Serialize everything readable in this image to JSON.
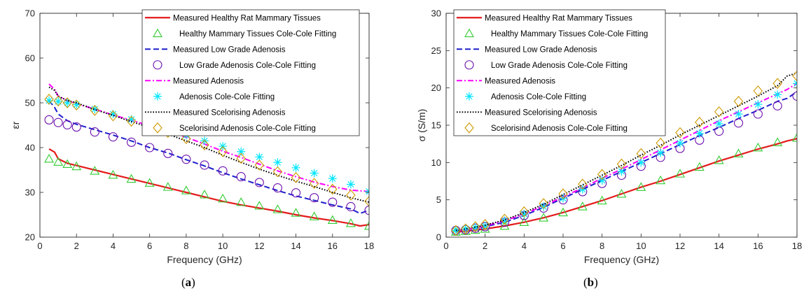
{
  "chart_data": [
    {
      "type": "line",
      "panel_label": "a",
      "xlabel": "Frequency (GHz)",
      "ylabel": "εr",
      "xlim": [
        0,
        18
      ],
      "ylim": [
        20,
        70
      ],
      "xticks": [
        0,
        2,
        4,
        6,
        8,
        10,
        12,
        14,
        16,
        18
      ],
      "yticks": [
        20,
        30,
        40,
        50,
        60,
        70
      ],
      "legend_position": "top-right",
      "series": [
        {
          "name": "Measured Healthy Rat Mammary Tissues",
          "style": "solid",
          "color": "#e41a1c",
          "x": [
            0.5,
            0.8,
            1,
            1.5,
            2,
            3,
            4,
            5,
            6,
            7,
            8,
            9,
            10,
            11,
            12,
            13,
            14,
            15,
            16,
            17,
            17.5,
            18
          ],
          "y": [
            39.7,
            39,
            37.5,
            36.5,
            36,
            35,
            34,
            33,
            32,
            31,
            30,
            29,
            28,
            27.2,
            26.5,
            25.8,
            25,
            24.3,
            23.7,
            23,
            22.5,
            22.8
          ]
        },
        {
          "name": "Healthy Mammary Tissues Cole-Cole Fitting",
          "marker": "triangle",
          "color": "#33cc33",
          "x": [
            0.5,
            1,
            1.5,
            2,
            3,
            4,
            5,
            6,
            7,
            8,
            9,
            10,
            11,
            12,
            13,
            14,
            15,
            16,
            17,
            18
          ],
          "y": [
            37.5,
            36.8,
            36.3,
            35.8,
            34.8,
            33.9,
            33,
            32.1,
            31.2,
            30.4,
            29.5,
            28.6,
            27.8,
            27,
            26.2,
            25.4,
            24.6,
            23.8,
            23.1,
            22.5
          ]
        },
        {
          "name": "Measured  Low Grade Adenosis",
          "style": "dashed",
          "color": "#1f1fcc",
          "x": [
            0.5,
            0.8,
            1,
            1.5,
            2,
            3,
            4,
            5,
            6,
            7,
            8,
            9,
            10,
            11,
            12,
            13,
            14,
            15,
            16,
            17,
            17.5,
            18
          ],
          "y": [
            50.5,
            49,
            47.5,
            46,
            45.2,
            44,
            42.8,
            41.5,
            40,
            38.8,
            37.3,
            35.9,
            34.4,
            33,
            31.7,
            30.4,
            29.2,
            28.2,
            27.2,
            26.3,
            25.3,
            26
          ]
        },
        {
          "name": "Low Grade Adenosis Cole-Cole Fitting",
          "marker": "circle",
          "color": "#6a0dad",
          "x": [
            0.5,
            1,
            1.5,
            2,
            3,
            4,
            5,
            6,
            7,
            8,
            9,
            10,
            11,
            12,
            13,
            14,
            15,
            16,
            17,
            18
          ],
          "y": [
            46.2,
            45.6,
            45.1,
            44.6,
            43.5,
            42.4,
            41.2,
            40,
            38.7,
            37.4,
            36.1,
            34.8,
            33.5,
            32.2,
            31,
            29.9,
            28.8,
            27.8,
            26.8,
            26
          ]
        },
        {
          "name": "Measured Adenosis",
          "style": "dashdot",
          "color": "#ff00ff",
          "x": [
            0.5,
            0.8,
            1,
            1.5,
            2,
            3,
            4,
            5,
            6,
            7,
            8,
            9,
            10,
            11,
            12,
            13,
            14,
            15,
            16,
            17,
            18
          ],
          "y": [
            54.2,
            53,
            51.5,
            50.5,
            49.8,
            48.6,
            47.3,
            46.1,
            44.9,
            43.7,
            42.3,
            40.8,
            39.2,
            37.8,
            36.3,
            34.8,
            33.5,
            32.3,
            31.3,
            30.5,
            30.2
          ]
        },
        {
          "name": "Adenosis Cole-Cole Fitting",
          "marker": "asterisk",
          "color": "#00e5ff",
          "x": [
            0.5,
            1,
            1.5,
            2,
            3,
            4,
            5,
            6,
            7,
            8,
            9,
            10,
            11,
            12,
            13,
            14,
            15,
            16,
            17,
            18
          ],
          "y": [
            50.5,
            50.3,
            50,
            49.6,
            48.6,
            47.5,
            46.3,
            45.2,
            44,
            42.8,
            41.5,
            40.3,
            39.1,
            37.9,
            36.7,
            35.5,
            34.3,
            33.1,
            31.8,
            30.2
          ]
        },
        {
          "name": "Measured Scelorising Adenosis",
          "style": "dotted",
          "color": "#000000",
          "x": [
            0.5,
            0.8,
            1,
            1.5,
            2,
            3,
            4,
            5,
            6,
            7,
            8,
            9,
            10,
            11,
            12,
            13,
            14,
            15,
            16,
            17,
            17.5,
            18
          ],
          "y": [
            53.5,
            52.8,
            51.5,
            50.5,
            50,
            48.5,
            47.2,
            45.8,
            44.5,
            43,
            41.5,
            40,
            38.3,
            36.7,
            35.2,
            33.8,
            32.5,
            31.3,
            30,
            28.8,
            28.3,
            27.8
          ]
        },
        {
          "name": "Scelorisind Adenosis Cole-Cole Fitting",
          "marker": "diamond",
          "color": "#cc9900",
          "x": [
            0.5,
            1,
            1.5,
            2,
            3,
            4,
            5,
            6,
            7,
            8,
            9,
            10,
            11,
            12,
            13,
            14,
            15,
            16,
            17,
            18
          ],
          "y": [
            50.8,
            50.4,
            50,
            49.5,
            48.3,
            47.1,
            45.9,
            44.7,
            43.4,
            42,
            40.6,
            39.1,
            37.6,
            36.1,
            34.6,
            33.3,
            32,
            30.7,
            29.4,
            28
          ]
        }
      ]
    },
    {
      "type": "line",
      "panel_label": "b",
      "xlabel": "Frequency (GHz)",
      "ylabel": "σ (S/m)",
      "xlim": [
        0,
        18
      ],
      "ylim": [
        0,
        30
      ],
      "xticks": [
        0,
        2,
        4,
        6,
        8,
        10,
        12,
        14,
        16,
        18
      ],
      "yticks": [
        0,
        5,
        10,
        15,
        20,
        25,
        30
      ],
      "legend_position": "top-left",
      "series": [
        {
          "name": "Measured Healthy Rat Mammary Tissues",
          "style": "solid",
          "color": "#e41a1c",
          "x": [
            0.5,
            1,
            2,
            3,
            4,
            5,
            6,
            7,
            8,
            9,
            10,
            11,
            12,
            13,
            14,
            15,
            16,
            17,
            17.5,
            18
          ],
          "y": [
            0.7,
            0.8,
            1.1,
            1.5,
            2,
            2.6,
            3.3,
            4.1,
            4.9,
            5.8,
            6.7,
            7.5,
            8.4,
            9.3,
            10.2,
            11,
            11.8,
            12.5,
            12.9,
            13.2
          ]
        },
        {
          "name": "Healthy Mammary Tissues Cole-Cole Fitting",
          "marker": "triangle",
          "color": "#33cc33",
          "x": [
            0.5,
            1,
            1.5,
            2,
            3,
            4,
            5,
            6,
            7,
            8,
            9,
            10,
            11,
            12,
            13,
            14,
            15,
            16,
            17,
            18
          ],
          "y": [
            0.7,
            0.8,
            0.95,
            1.1,
            1.5,
            2,
            2.6,
            3.3,
            4.1,
            4.9,
            5.8,
            6.7,
            7.6,
            8.5,
            9.4,
            10.3,
            11.2,
            12,
            12.7,
            13.3
          ]
        },
        {
          "name": "Measured  Low Grade Adenosis",
          "style": "dashed",
          "color": "#1f1fcc",
          "x": [
            0.5,
            1,
            2,
            3,
            4,
            5,
            6,
            7,
            8,
            9,
            10,
            11,
            12,
            13,
            14,
            15,
            16,
            17,
            17.5,
            18
          ],
          "y": [
            0.9,
            1,
            1.4,
            2,
            2.9,
            4,
            5.2,
            6.4,
            7.6,
            8.8,
            10,
            11.2,
            12.4,
            13.6,
            14.7,
            15.9,
            17,
            18.2,
            18.6,
            19.5
          ]
        },
        {
          "name": "Low Grade Adenosis Cole-Cole Fitting",
          "marker": "circle",
          "color": "#6a0dad",
          "x": [
            0.5,
            1,
            1.5,
            2,
            3,
            4,
            5,
            6,
            7,
            8,
            9,
            10,
            11,
            12,
            13,
            14,
            15,
            16,
            17,
            18
          ],
          "y": [
            0.9,
            1,
            1.2,
            1.4,
            2,
            2.9,
            3.9,
            5,
            6.1,
            7.2,
            8.3,
            9.5,
            10.7,
            11.9,
            13,
            14.2,
            15.3,
            16.5,
            17.6,
            18.9
          ]
        },
        {
          "name": "Measured Adenosis",
          "style": "dashdot",
          "color": "#ff00ff",
          "x": [
            0.5,
            1,
            2,
            3,
            4,
            5,
            6,
            7,
            8,
            9,
            10,
            11,
            12,
            13,
            14,
            15,
            16,
            17,
            17.5,
            18
          ],
          "y": [
            0.9,
            1,
            1.5,
            2.2,
            3.1,
            4.2,
            5.4,
            6.6,
            7.9,
            9.1,
            10.4,
            11.7,
            13,
            14.3,
            15.6,
            16.8,
            18,
            19.2,
            19.8,
            20.6
          ]
        },
        {
          "name": "Adenosis Cole-Cole Fitting",
          "marker": "asterisk",
          "color": "#00e5ff",
          "x": [
            0.5,
            1,
            1.5,
            2,
            3,
            4,
            5,
            6,
            7,
            8,
            9,
            10,
            11,
            12,
            13,
            14,
            15,
            16,
            17,
            18
          ],
          "y": [
            0.9,
            1.1,
            1.3,
            1.5,
            2.2,
            3.1,
            4.1,
            5.2,
            6.4,
            7.6,
            8.8,
            10,
            11.3,
            12.6,
            13.9,
            15.2,
            16.5,
            17.8,
            19.1,
            20.6
          ]
        },
        {
          "name": "Measured Scelorising Adenosis",
          "style": "dotted",
          "color": "#000000",
          "x": [
            0.5,
            1,
            2,
            3,
            4,
            5,
            6,
            7,
            8,
            9,
            10,
            11,
            12,
            13,
            14,
            15,
            16,
            17,
            17.5,
            18
          ],
          "y": [
            0.9,
            1.1,
            1.6,
            2.3,
            3.3,
            4.4,
            5.7,
            7,
            8.3,
            9.6,
            11,
            12.3,
            13.7,
            15,
            16.3,
            17.6,
            18.9,
            20.3,
            21.6,
            22
          ]
        },
        {
          "name": "Scelorisind Adenosis Cole-Cole Fitting",
          "marker": "diamond",
          "color": "#cc9900",
          "x": [
            0.5,
            1,
            1.5,
            2,
            3,
            4,
            5,
            6,
            7,
            8,
            9,
            10,
            11,
            12,
            13,
            14,
            15,
            16,
            17,
            18
          ],
          "y": [
            0.9,
            1.1,
            1.4,
            1.7,
            2.4,
            3.4,
            4.5,
            5.8,
            7.1,
            8.4,
            9.8,
            11.2,
            12.6,
            14,
            15.4,
            16.8,
            18.2,
            19.6,
            20.6,
            21.6
          ]
        }
      ]
    }
  ]
}
